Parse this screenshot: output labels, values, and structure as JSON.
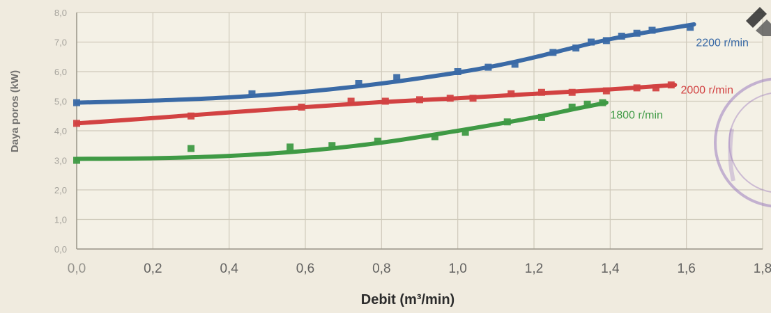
{
  "chart_data": {
    "type": "line",
    "title": "",
    "xlabel": "Debit (m³/min)",
    "ylabel": "Daya poros (kW)",
    "xlim": [
      0,
      1.8
    ],
    "ylim": [
      0,
      8
    ],
    "x_ticks": [
      "0,0",
      "0,2",
      "0,4",
      "0,6",
      "0,8",
      "1,0",
      "1,2",
      "1,4",
      "1,6",
      "1,8"
    ],
    "y_ticks": [
      "0,0",
      "1,0",
      "2,0",
      "3,0",
      "4,0",
      "5,0",
      "6,0",
      "7,0",
      "8,0"
    ],
    "grid": true,
    "series": [
      {
        "name": "2200 r/min",
        "color": "#3a6aa6",
        "curve": [
          [
            0,
            4.95
          ],
          [
            0.2,
            5.02
          ],
          [
            0.4,
            5.13
          ],
          [
            0.6,
            5.32
          ],
          [
            0.8,
            5.6
          ],
          [
            1.0,
            5.97
          ],
          [
            1.1,
            6.2
          ],
          [
            1.2,
            6.48
          ],
          [
            1.3,
            6.8
          ],
          [
            1.4,
            7.1
          ],
          [
            1.5,
            7.34
          ],
          [
            1.62,
            7.6
          ]
        ],
        "points": [
          [
            0.0,
            4.95
          ],
          [
            0.46,
            5.25
          ],
          [
            0.74,
            5.6
          ],
          [
            0.84,
            5.8
          ],
          [
            1.0,
            6.0
          ],
          [
            1.08,
            6.15
          ],
          [
            1.15,
            6.25
          ],
          [
            1.25,
            6.65
          ],
          [
            1.31,
            6.8
          ],
          [
            1.35,
            7.0
          ],
          [
            1.39,
            7.05
          ],
          [
            1.43,
            7.2
          ],
          [
            1.47,
            7.3
          ],
          [
            1.51,
            7.4
          ],
          [
            1.61,
            7.5
          ]
        ]
      },
      {
        "name": "2000 r/min",
        "color": "#d24242",
        "curve": [
          [
            0,
            4.25
          ],
          [
            0.2,
            4.43
          ],
          [
            0.4,
            4.62
          ],
          [
            0.6,
            4.8
          ],
          [
            0.8,
            4.97
          ],
          [
            1.0,
            5.1
          ],
          [
            1.2,
            5.25
          ],
          [
            1.4,
            5.4
          ],
          [
            1.57,
            5.55
          ]
        ],
        "points": [
          [
            0.0,
            4.25
          ],
          [
            0.3,
            4.5
          ],
          [
            0.59,
            4.8
          ],
          [
            0.72,
            5.0
          ],
          [
            0.81,
            5.0
          ],
          [
            0.9,
            5.05
          ],
          [
            0.98,
            5.1
          ],
          [
            1.04,
            5.1
          ],
          [
            1.14,
            5.25
          ],
          [
            1.22,
            5.3
          ],
          [
            1.3,
            5.3
          ],
          [
            1.39,
            5.35
          ],
          [
            1.47,
            5.45
          ],
          [
            1.52,
            5.45
          ],
          [
            1.56,
            5.55
          ]
        ]
      },
      {
        "name": "1800 r/min",
        "color": "#3f9a45",
        "curve": [
          [
            0,
            3.05
          ],
          [
            0.2,
            3.07
          ],
          [
            0.4,
            3.15
          ],
          [
            0.6,
            3.32
          ],
          [
            0.8,
            3.6
          ],
          [
            1.0,
            4.0
          ],
          [
            1.2,
            4.45
          ],
          [
            1.3,
            4.72
          ],
          [
            1.39,
            4.95
          ]
        ],
        "points": [
          [
            0.0,
            3.0
          ],
          [
            0.3,
            3.4
          ],
          [
            0.56,
            3.45
          ],
          [
            0.67,
            3.5
          ],
          [
            0.79,
            3.65
          ],
          [
            0.94,
            3.8
          ],
          [
            1.02,
            3.95
          ],
          [
            1.13,
            4.3
          ],
          [
            1.22,
            4.45
          ],
          [
            1.3,
            4.8
          ],
          [
            1.34,
            4.9
          ],
          [
            1.38,
            4.95
          ]
        ]
      }
    ]
  }
}
